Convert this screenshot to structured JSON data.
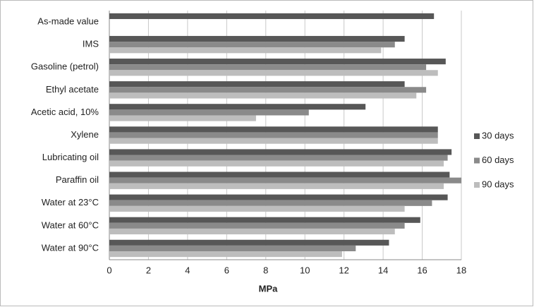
{
  "chart_data": {
    "type": "hbar",
    "xlabel": "MPa",
    "categories": [
      "As-made value",
      "IMS",
      "Gasoline (petrol)",
      "Ethyl acetate",
      "Acetic acid, 10%",
      "Xylene",
      "Lubricating oil",
      "Paraffin oil",
      "Water at 23°C",
      "Water at 60°C",
      "Water at 90°C"
    ],
    "series": [
      {
        "name": "30 days",
        "color": "#575757",
        "values": [
          16.6,
          15.1,
          17.2,
          15.1,
          13.1,
          16.8,
          17.5,
          17.4,
          17.3,
          15.9,
          14.3
        ]
      },
      {
        "name": "60 days",
        "color": "#8a8a8a",
        "values": [
          null,
          14.6,
          16.2,
          16.2,
          10.2,
          16.8,
          17.3,
          18,
          16.5,
          15.1,
          12.6
        ]
      },
      {
        "name": "90 days",
        "color": "#bdbdbd",
        "values": [
          null,
          13.9,
          16.8,
          15.7,
          7.5,
          16.8,
          17.1,
          17.1,
          15.1,
          14.6,
          11.9
        ]
      }
    ],
    "xlim": [
      0,
      18
    ],
    "xticks": [
      0,
      2,
      4,
      6,
      8,
      10,
      12,
      14,
      16,
      18
    ],
    "grid": true,
    "legend": "right"
  }
}
